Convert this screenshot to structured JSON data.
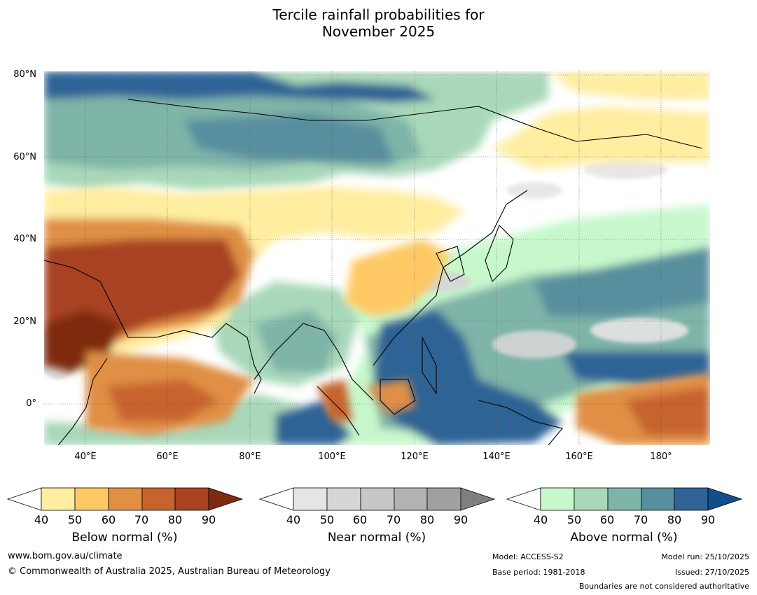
{
  "title": {
    "line1": "Tercile rainfall probabilities for",
    "line2": "November 2025"
  },
  "axes": {
    "lat_labels": [
      "80°N",
      "60°N",
      "40°N",
      "20°N",
      "0°"
    ],
    "lon_labels": [
      "40°E",
      "60°E",
      "80°E",
      "100°E",
      "120°E",
      "140°E",
      "160°E",
      "180°"
    ],
    "lon_range": [
      30,
      192
    ],
    "lat_range": [
      -10,
      81
    ]
  },
  "colorbars": {
    "below": {
      "title": "Below normal (%)",
      "ticks": [
        "40",
        "50",
        "60",
        "70",
        "80",
        "90"
      ],
      "colors": [
        "#ffeda0",
        "#fec965",
        "#e08f44",
        "#c7632d",
        "#a84320",
        "#7f2a10"
      ]
    },
    "near": {
      "title": "Near normal (%)",
      "ticks": [
        "40",
        "50",
        "60",
        "70",
        "80",
        "90"
      ],
      "colors": [
        "#e5e5e5",
        "#d6d6d6",
        "#c7c7c7",
        "#b3b3b3",
        "#a0a0a0",
        "#7f7f7f"
      ]
    },
    "above": {
      "title": "Above normal (%)",
      "ticks": [
        "40",
        "50",
        "60",
        "70",
        "80",
        "90"
      ],
      "colors": [
        "#c7f8cc",
        "#a8d8b9",
        "#7fb4a8",
        "#588f9e",
        "#2f6396",
        "#144e8a"
      ]
    }
  },
  "footer": {
    "website": "www.bom.gov.au/climate",
    "copyright": "© Commonwealth of Australia 2025, Australian Bureau of Meteorology",
    "model": "Model: ACCESS-S2",
    "base_period": "Base period: 1981-2018",
    "model_run": "Model run: 25/10/2025",
    "issued": "Issued: 27/10/2025",
    "boundaries": "Boundaries are not considered authoritative"
  }
}
